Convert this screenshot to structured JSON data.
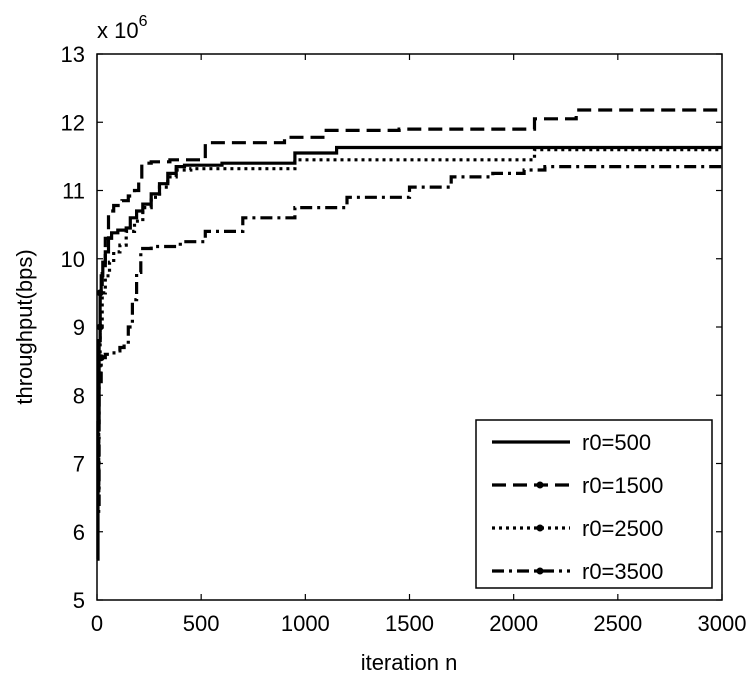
{
  "chart_data": {
    "type": "line",
    "title": "",
    "xlabel": "iteration n",
    "ylabel": "throughput(bps)",
    "y_multiplier": "x 10",
    "y_multiplier_exp": "6",
    "xlim": [
      0,
      3000
    ],
    "ylim": [
      5,
      13
    ],
    "x_ticks": [
      "0",
      "500",
      "1000",
      "1500",
      "2000",
      "2500",
      "3000"
    ],
    "y_ticks": [
      "5",
      "6",
      "7",
      "8",
      "9",
      "10",
      "11",
      "12",
      "13"
    ],
    "grid": false,
    "legend_position": "bottom-right",
    "series": [
      {
        "name": "r0=500",
        "dash": "solid",
        "marker": false,
        "x": [
          0,
          5,
          10,
          15,
          20,
          28,
          40,
          55,
          70,
          100,
          140,
          160,
          190,
          220,
          260,
          300,
          340,
          380,
          420,
          600,
          950,
          1150,
          3000
        ],
        "y": [
          5.6,
          7.6,
          8.8,
          9.5,
          9.75,
          9.95,
          10.1,
          10.3,
          10.38,
          10.42,
          10.45,
          10.6,
          10.7,
          10.8,
          10.95,
          11.1,
          11.25,
          11.35,
          11.37,
          11.4,
          11.55,
          11.63,
          11.63
        ]
      },
      {
        "name": "r0=1500",
        "dash": "dashed",
        "marker": true,
        "x": [
          0,
          8,
          15,
          25,
          40,
          55,
          80,
          120,
          150,
          180,
          200,
          215,
          260,
          350,
          480,
          520,
          900,
          1100,
          1450,
          2100,
          2300,
          3000
        ],
        "y": [
          6.6,
          8.8,
          9.5,
          9.9,
          10.3,
          10.7,
          10.78,
          10.85,
          10.92,
          11.0,
          11.15,
          11.4,
          11.42,
          11.45,
          11.45,
          11.7,
          11.78,
          11.88,
          11.9,
          12.05,
          12.18,
          12.18
        ]
      },
      {
        "name": "r0=2500",
        "dash": "dotted",
        "marker": true,
        "x": [
          0,
          8,
          15,
          25,
          40,
          60,
          80,
          110,
          140,
          180,
          220,
          260,
          300,
          340,
          380,
          450,
          900,
          950,
          2100,
          3000
        ],
        "y": [
          6.3,
          8.2,
          9.0,
          9.5,
          9.75,
          9.95,
          10.1,
          10.2,
          10.4,
          10.55,
          10.75,
          10.9,
          11.05,
          11.2,
          11.3,
          11.32,
          11.32,
          11.45,
          11.6,
          11.6
        ]
      },
      {
        "name": "r0=3500",
        "dash": "dashdot",
        "marker": true,
        "x": [
          0,
          10,
          20,
          40,
          60,
          90,
          110,
          130,
          150,
          170,
          190,
          210,
          260,
          400,
          520,
          700,
          950,
          1200,
          1500,
          1700,
          1900,
          2050,
          2150,
          3000
        ],
        "y": [
          6.4,
          8.2,
          8.55,
          8.6,
          8.62,
          8.65,
          8.7,
          8.75,
          9.0,
          9.4,
          9.8,
          10.15,
          10.18,
          10.25,
          10.4,
          10.6,
          10.75,
          10.9,
          11.05,
          11.2,
          11.25,
          11.3,
          11.35,
          11.35
        ]
      }
    ]
  }
}
